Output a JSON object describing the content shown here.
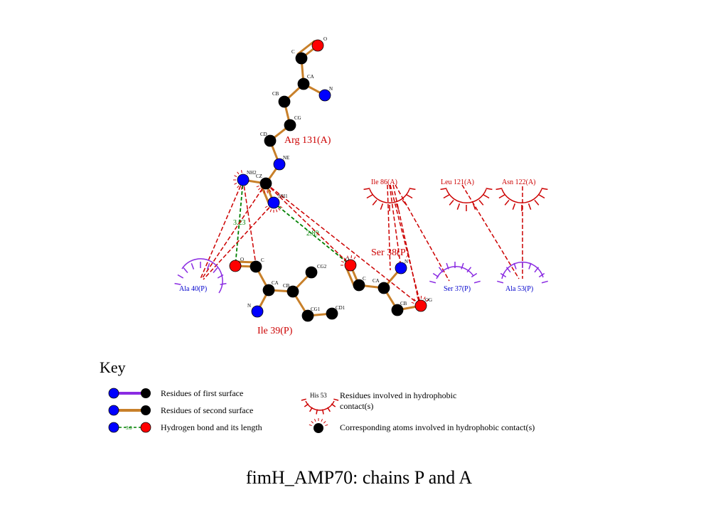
{
  "title": "fimH_AMP70: chains P and A",
  "colors": {
    "bond_first_surface": "#8a2be2",
    "bond_second_surface": "#c8802a",
    "atom_carbon": "#000000",
    "atom_nitrogen": "#0000ff",
    "atom_oxygen": "#ff0000",
    "hbond": "#008000",
    "hydrophobic_line": "#cc0000",
    "residue_label_A": "#cc0000",
    "residue_label_P": "#0000cc",
    "arc_A": "#cc0000",
    "arc_P": "#8a2be2"
  },
  "residues": {
    "arg131": "Arg 131(A)",
    "ile39": "Ile 39(P)",
    "ser38": "Ser 38(P)"
  },
  "atoms": {
    "arg_O": "O",
    "arg_C": "C",
    "arg_CA": "CA",
    "arg_N": "N",
    "arg_CB": "CB",
    "arg_CG": "CG",
    "arg_CD": "CD",
    "arg_NE": "NE",
    "arg_NH2": "NH2",
    "arg_CZ": "CZ",
    "arg_NH1": "NH1",
    "ile_O": "O",
    "ile_C": "C",
    "ile_CA": "CA",
    "ile_N": "N",
    "ile_CB": "CB",
    "ile_CG2": "CG2",
    "ile_CG1": "CG1",
    "ile_CD1": "CD1",
    "ser_O": "O",
    "ser_C": "C",
    "ser_CA": "CA",
    "ser_N": "N",
    "ser_CB": "CB",
    "ser_OG": "OG"
  },
  "hbonds": {
    "hb1": "3.23",
    "hb2": "2.89"
  },
  "hydrophobic": {
    "ile86": "Ile 86(A)",
    "leu121": "Leu 121(A)",
    "asn122": "Asn 122(A)",
    "ala40": "Ala 40(P)",
    "ser37": "Ser 37(P)",
    "ala53": "Ala 53(P)"
  },
  "key": {
    "heading": "Key",
    "first_surface": "Residues of first surface",
    "second_surface": "Residues of second surface",
    "hbond_label": "Hydrogen bond and its length",
    "hbond_sample": "3.0",
    "hydro_sample": "His 53",
    "hydro_residues_line1": "Residues involved in hydrophobic",
    "hydro_residues_line2": "contact(s)",
    "hydro_atoms": "Corresponding atoms involved in hydrophobic contact(s)"
  }
}
